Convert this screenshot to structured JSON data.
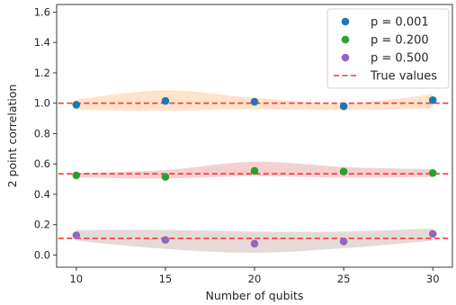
{
  "chart_data": {
    "type": "scatter",
    "title": "",
    "xlabel": "Number of qubits",
    "ylabel": "2 point correlation",
    "xlim": [
      8.9,
      31.1
    ],
    "ylim": [
      -0.08,
      1.65
    ],
    "xticks": [
      10,
      15,
      20,
      25,
      30
    ],
    "yticks": [
      0.0,
      0.2,
      0.4,
      0.6,
      0.8,
      1.0,
      1.2,
      1.4,
      1.6
    ],
    "xtick_labels": [
      "10",
      "15",
      "20",
      "25",
      "30"
    ],
    "ytick_labels": [
      "0.0",
      "0.2",
      "0.4",
      "0.6",
      "0.8",
      "1.0",
      "1.2",
      "1.4",
      "1.6"
    ],
    "grid": false,
    "legend_position": "top-right",
    "x": [
      10,
      15,
      20,
      25,
      30
    ],
    "series": [
      {
        "name": "p = 0.001",
        "color": "#1f77b4",
        "values": [
          0.99,
          1.015,
          1.01,
          0.98,
          1.02
        ],
        "band_color": "#ff7f0e",
        "band_lower": [
          0.955,
          0.95,
          0.96,
          0.955,
          0.965
        ],
        "band_upper": [
          1.025,
          1.085,
          1.035,
          1.0,
          1.06
        ],
        "true_value": 1.0
      },
      {
        "name": "p = 0.200",
        "color": "#2ca02c",
        "values": [
          0.525,
          0.515,
          0.555,
          0.55,
          0.54
        ],
        "band_color": "#d62728",
        "band_lower": [
          0.51,
          0.505,
          0.52,
          0.51,
          0.515
        ],
        "band_upper": [
          0.54,
          0.56,
          0.615,
          0.58,
          0.565
        ],
        "true_value": 0.535
      },
      {
        "name": "p = 0.500",
        "color": "#9467bd",
        "values": [
          0.13,
          0.1,
          0.075,
          0.09,
          0.14
        ],
        "band_color": "#8c564b",
        "band_lower": [
          0.095,
          0.04,
          0.015,
          0.045,
          0.095
        ],
        "band_upper": [
          0.165,
          0.165,
          0.155,
          0.155,
          0.175
        ],
        "true_value": 0.11
      }
    ],
    "true_values_line": {
      "name": "True values",
      "color": "#ff3333",
      "style": "dashed"
    }
  }
}
